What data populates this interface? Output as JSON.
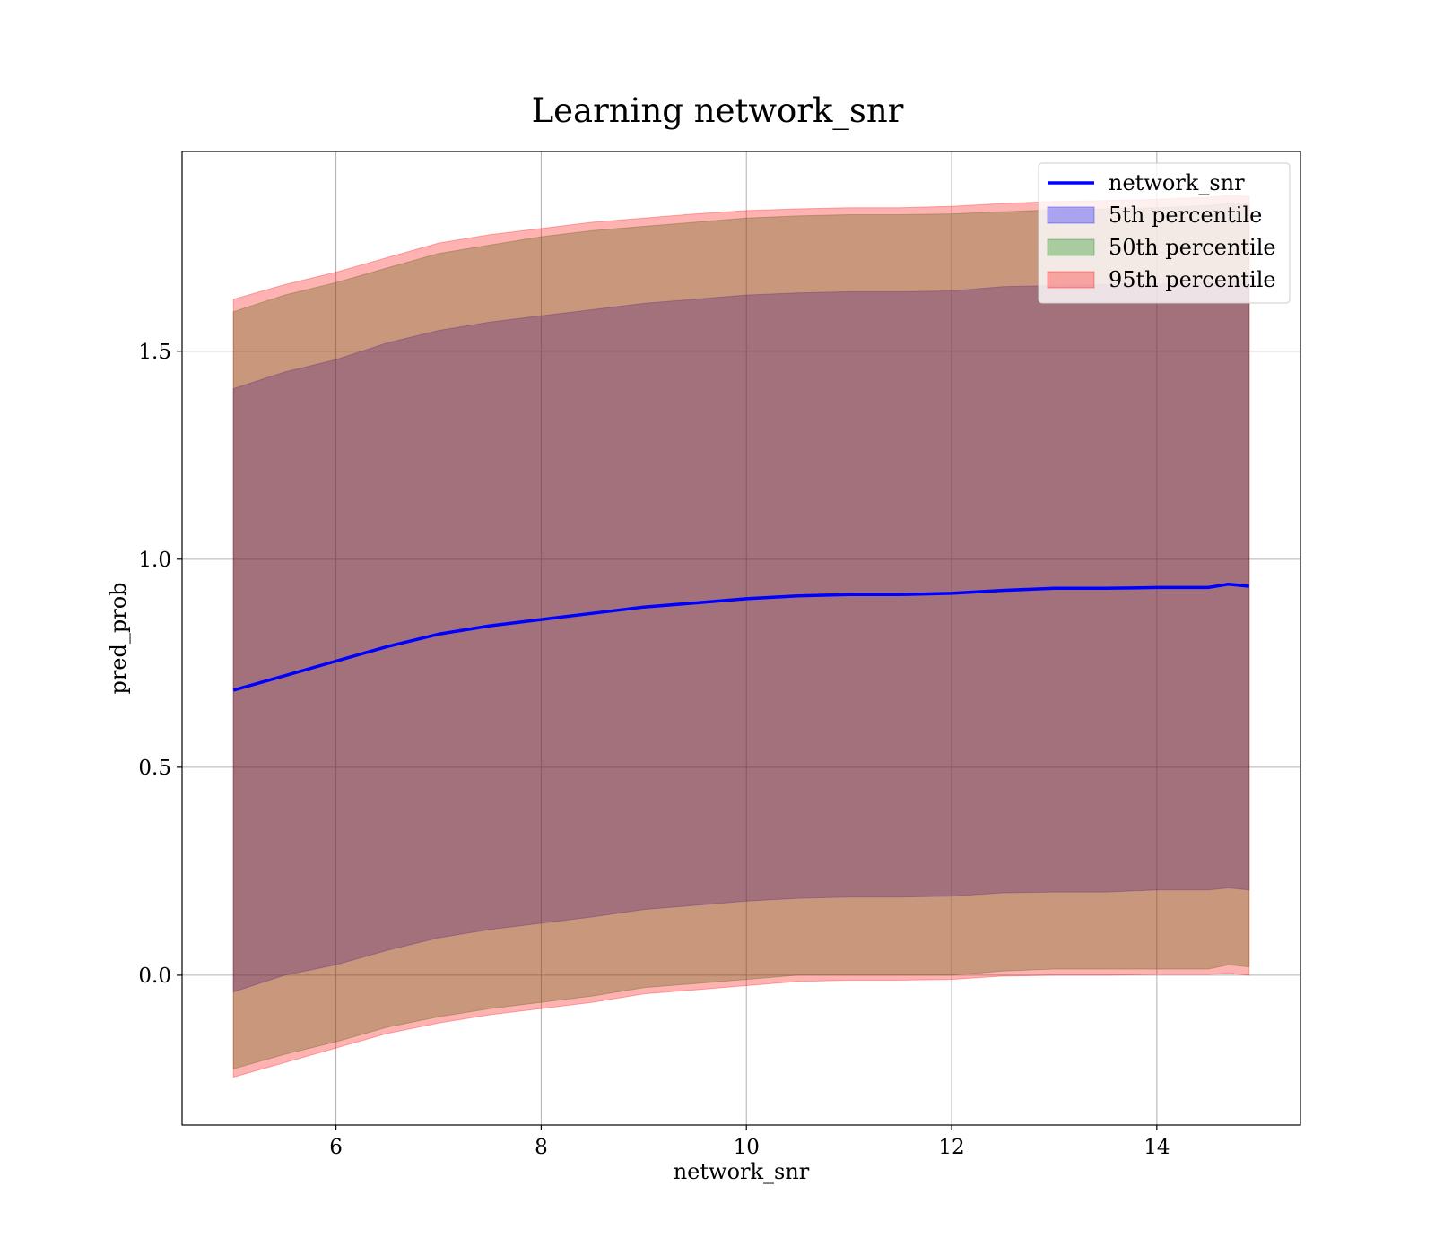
{
  "chart_data": {
    "type": "area",
    "title": "Learning network_snr",
    "xlabel": "network_snr",
    "ylabel": "pred_prob",
    "xlim": [
      4.5,
      15.4
    ],
    "ylim": [
      -0.36,
      1.98
    ],
    "grid": true,
    "legend_position": "top-right",
    "xticks": [
      6,
      8,
      10,
      12,
      14
    ],
    "xtick_labels": [
      "6",
      "8",
      "10",
      "12",
      "14"
    ],
    "yticks": [
      0.0,
      0.5,
      1.0,
      1.5
    ],
    "ytick_labels": [
      "0.0",
      "0.5",
      "1.0",
      "1.5"
    ],
    "x": [
      5.0,
      5.5,
      6.0,
      6.5,
      7.0,
      7.5,
      8.0,
      8.5,
      9.0,
      9.5,
      10.0,
      10.5,
      11.0,
      11.5,
      12.0,
      12.5,
      13.0,
      13.5,
      14.0,
      14.5,
      14.7,
      14.9
    ],
    "series": [
      {
        "name": "network_snr",
        "kind": "line",
        "color": "#0000ff",
        "values": [
          0.685,
          0.72,
          0.755,
          0.79,
          0.82,
          0.84,
          0.855,
          0.87,
          0.885,
          0.895,
          0.905,
          0.912,
          0.915,
          0.915,
          0.918,
          0.925,
          0.93,
          0.93,
          0.932,
          0.932,
          0.94,
          0.935
        ]
      },
      {
        "name": "5th percentile",
        "kind": "band",
        "color": "#0000ff",
        "lower": [
          -0.04,
          0.0,
          0.025,
          0.06,
          0.09,
          0.11,
          0.125,
          0.14,
          0.158,
          0.168,
          0.178,
          0.185,
          0.188,
          0.188,
          0.19,
          0.198,
          0.2,
          0.2,
          0.205,
          0.205,
          0.21,
          0.205
        ],
        "upper": [
          1.41,
          1.45,
          1.48,
          1.52,
          1.55,
          1.57,
          1.585,
          1.6,
          1.615,
          1.625,
          1.635,
          1.64,
          1.643,
          1.643,
          1.645,
          1.655,
          1.658,
          1.66,
          1.662,
          1.665,
          1.67,
          1.665
        ]
      },
      {
        "name": "50th percentile",
        "kind": "band",
        "color": "#008000",
        "lower": [
          -0.225,
          -0.19,
          -0.16,
          -0.125,
          -0.1,
          -0.08,
          -0.065,
          -0.05,
          -0.03,
          -0.02,
          -0.01,
          0.0,
          0.0,
          0.0,
          0.0,
          0.01,
          0.015,
          0.015,
          0.015,
          0.015,
          0.025,
          0.02
        ],
        "upper": [
          1.595,
          1.635,
          1.665,
          1.7,
          1.735,
          1.755,
          1.775,
          1.79,
          1.8,
          1.81,
          1.82,
          1.825,
          1.828,
          1.828,
          1.83,
          1.835,
          1.84,
          1.842,
          1.845,
          1.85,
          1.855,
          1.855
        ]
      },
      {
        "name": "95th percentile",
        "kind": "band",
        "color": "#ff0000",
        "lower": [
          -0.245,
          -0.21,
          -0.175,
          -0.14,
          -0.115,
          -0.095,
          -0.08,
          -0.065,
          -0.045,
          -0.035,
          -0.025,
          -0.015,
          -0.012,
          -0.012,
          -0.01,
          -0.002,
          0.0,
          0.0,
          0.002,
          0.002,
          0.005,
          0.0
        ],
        "upper": [
          1.625,
          1.66,
          1.69,
          1.725,
          1.76,
          1.78,
          1.795,
          1.81,
          1.82,
          1.83,
          1.838,
          1.842,
          1.845,
          1.845,
          1.848,
          1.855,
          1.86,
          1.862,
          1.865,
          1.87,
          1.875,
          1.872
        ]
      }
    ]
  }
}
